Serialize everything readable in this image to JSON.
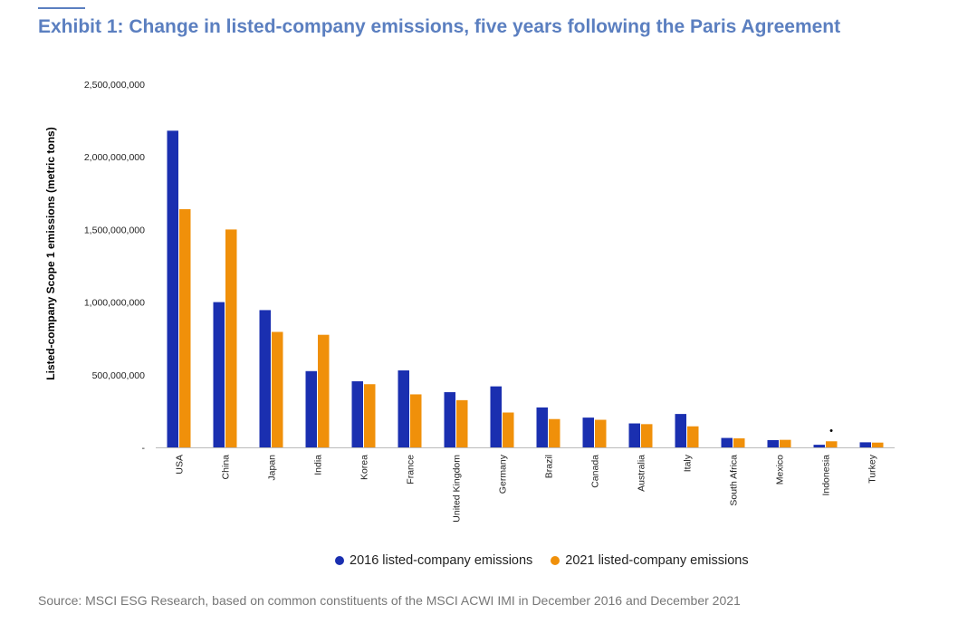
{
  "title": "Exhibit 1: Change in listed-company emissions, five years following the Paris Agreement",
  "source": "Source: MSCI ESG Research, based on common constituents of the MSCI ACWI IMI in December 2016 and December 2021",
  "colors": {
    "title": "#5b7fc0",
    "series_2016": "#1a2fb0",
    "series_2021": "#f0900a"
  },
  "chart_data": {
    "type": "bar",
    "ylabel": "Listed-company Scope 1 emissions (metric tons)",
    "xlabel": "",
    "ylim": [
      0,
      2500000000
    ],
    "y_ticks": [
      "-",
      "500,000,000",
      "1,000,000,000",
      "1,500,000,000",
      "2,000,000,000",
      "2,500,000,000"
    ],
    "grid": false,
    "legend_position": "bottom",
    "categories": [
      "USA",
      "China",
      "Japan",
      "India",
      "Korea",
      "France",
      "United Kingdom",
      "Germany",
      "Brazil",
      "Canada",
      "Australia",
      "Italy",
      "South Africa",
      "Mexico",
      "Indonesia",
      "Turkey"
    ],
    "series": [
      {
        "name": "2016 listed-company emissions",
        "values": [
          2180000000,
          1000000000,
          945000000,
          525000000,
          455000000,
          530000000,
          380000000,
          420000000,
          275000000,
          205000000,
          165000000,
          230000000,
          65000000,
          50000000,
          18000000,
          35000000
        ]
      },
      {
        "name": "2021 listed-company emissions",
        "values": [
          1640000000,
          1500000000,
          795000000,
          775000000,
          435000000,
          365000000,
          325000000,
          240000000,
          195000000,
          190000000,
          160000000,
          145000000,
          62000000,
          52000000,
          42000000,
          33000000
        ]
      }
    ],
    "annotations": [
      "•"
    ]
  }
}
